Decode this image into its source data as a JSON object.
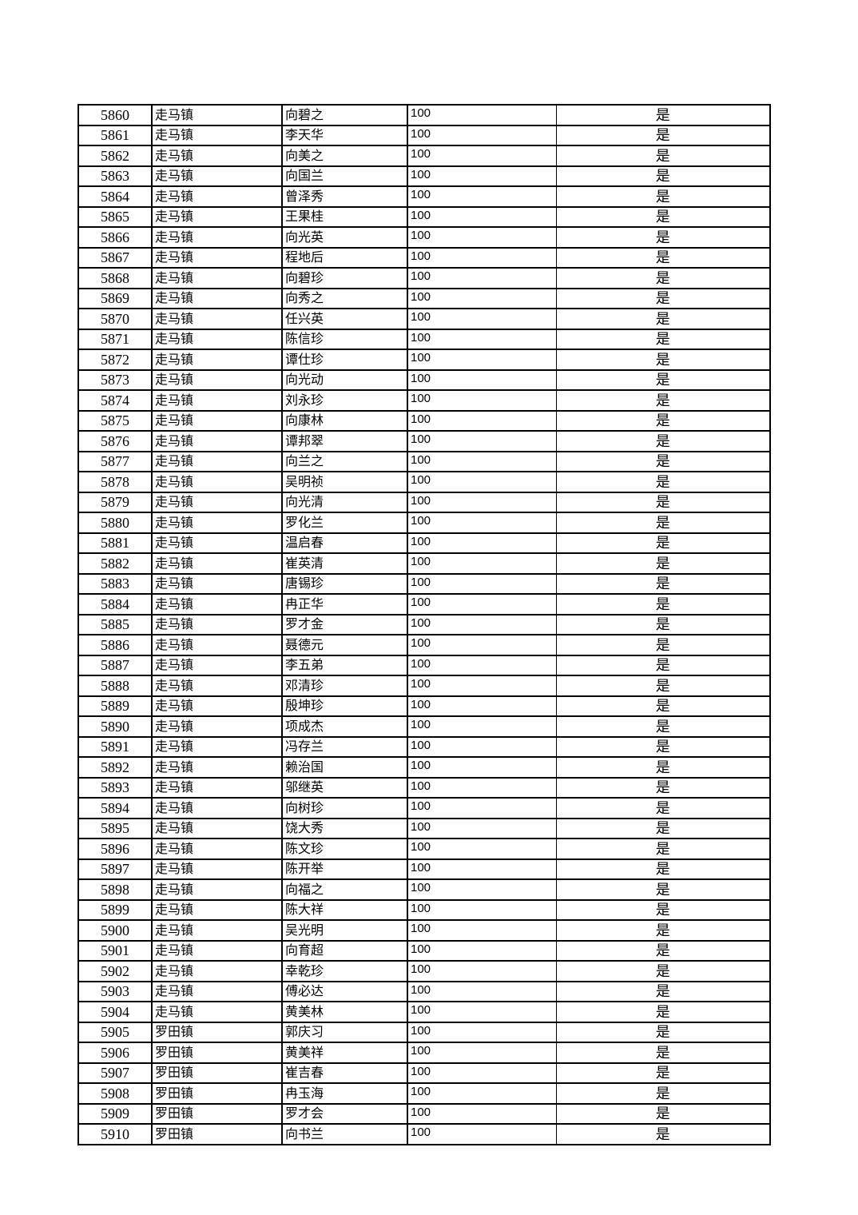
{
  "table": {
    "rows": [
      [
        "5860",
        "走马镇",
        "向碧之",
        "100",
        "是"
      ],
      [
        "5861",
        "走马镇",
        "李天华",
        "100",
        "是"
      ],
      [
        "5862",
        "走马镇",
        "向美之",
        "100",
        "是"
      ],
      [
        "5863",
        "走马镇",
        "向国兰",
        "100",
        "是"
      ],
      [
        "5864",
        "走马镇",
        "曾泽秀",
        "100",
        "是"
      ],
      [
        "5865",
        "走马镇",
        "王果桂",
        "100",
        "是"
      ],
      [
        "5866",
        "走马镇",
        "向光英",
        "100",
        "是"
      ],
      [
        "5867",
        "走马镇",
        "程地后",
        "100",
        "是"
      ],
      [
        "5868",
        "走马镇",
        "向碧珍",
        "100",
        "是"
      ],
      [
        "5869",
        "走马镇",
        "向秀之",
        "100",
        "是"
      ],
      [
        "5870",
        "走马镇",
        "任兴英",
        "100",
        "是"
      ],
      [
        "5871",
        "走马镇",
        "陈信珍",
        "100",
        "是"
      ],
      [
        "5872",
        "走马镇",
        "谭仕珍",
        "100",
        "是"
      ],
      [
        "5873",
        "走马镇",
        "向光动",
        "100",
        "是"
      ],
      [
        "5874",
        "走马镇",
        "刘永珍",
        "100",
        "是"
      ],
      [
        "5875",
        "走马镇",
        "向康林",
        "100",
        "是"
      ],
      [
        "5876",
        "走马镇",
        "谭邦翠",
        "100",
        "是"
      ],
      [
        "5877",
        "走马镇",
        "向兰之",
        "100",
        "是"
      ],
      [
        "5878",
        "走马镇",
        "吴明祯",
        "100",
        "是"
      ],
      [
        "5879",
        "走马镇",
        "向光清",
        "100",
        "是"
      ],
      [
        "5880",
        "走马镇",
        "罗化兰",
        "100",
        "是"
      ],
      [
        "5881",
        "走马镇",
        "温启春",
        "100",
        "是"
      ],
      [
        "5882",
        "走马镇",
        "崔英清",
        "100",
        "是"
      ],
      [
        "5883",
        "走马镇",
        "唐锡珍",
        "100",
        "是"
      ],
      [
        "5884",
        "走马镇",
        "冉正华",
        "100",
        "是"
      ],
      [
        "5885",
        "走马镇",
        "罗才金",
        "100",
        "是"
      ],
      [
        "5886",
        "走马镇",
        "聂德元",
        "100",
        "是"
      ],
      [
        "5887",
        "走马镇",
        "李五弟",
        "100",
        "是"
      ],
      [
        "5888",
        "走马镇",
        "邓清珍",
        "100",
        "是"
      ],
      [
        "5889",
        "走马镇",
        "殷坤珍",
        "100",
        "是"
      ],
      [
        "5890",
        "走马镇",
        "项成杰",
        "100",
        "是"
      ],
      [
        "5891",
        "走马镇",
        "冯存兰",
        "100",
        "是"
      ],
      [
        "5892",
        "走马镇",
        "赖治国",
        "100",
        "是"
      ],
      [
        "5893",
        "走马镇",
        "邬继英",
        "100",
        "是"
      ],
      [
        "5894",
        "走马镇",
        "向树珍",
        "100",
        "是"
      ],
      [
        "5895",
        "走马镇",
        "饶大秀",
        "100",
        "是"
      ],
      [
        "5896",
        "走马镇",
        "陈文珍",
        "100",
        "是"
      ],
      [
        "5897",
        "走马镇",
        "陈开举",
        "100",
        "是"
      ],
      [
        "5898",
        "走马镇",
        "向福之",
        "100",
        "是"
      ],
      [
        "5899",
        "走马镇",
        "陈大祥",
        "100",
        "是"
      ],
      [
        "5900",
        "走马镇",
        "吴光明",
        "100",
        "是"
      ],
      [
        "5901",
        "走马镇",
        "向育超",
        "100",
        "是"
      ],
      [
        "5902",
        "走马镇",
        "幸乾珍",
        "100",
        "是"
      ],
      [
        "5903",
        "走马镇",
        "傅必达",
        "100",
        "是"
      ],
      [
        "5904",
        "走马镇",
        "黄美林",
        "100",
        "是"
      ],
      [
        "5905",
        "罗田镇",
        "郭庆习",
        "100",
        "是"
      ],
      [
        "5906",
        "罗田镇",
        "黄美祥",
        "100",
        "是"
      ],
      [
        "5907",
        "罗田镇",
        "崔吉春",
        "100",
        "是"
      ],
      [
        "5908",
        "罗田镇",
        "冉玉海",
        "100",
        "是"
      ],
      [
        "5909",
        "罗田镇",
        "罗才会",
        "100",
        "是"
      ],
      [
        "5910",
        "罗田镇",
        "向书兰",
        "100",
        "是"
      ]
    ]
  }
}
